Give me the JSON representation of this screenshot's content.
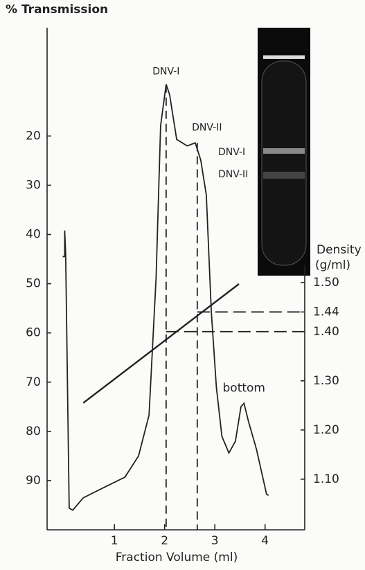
{
  "chart_data": {
    "type": "line",
    "y_label": "% Transmission",
    "x_label": "Fraction Volume (ml)",
    "y2_label": [
      "Density",
      "(g/ml)"
    ],
    "xlim": [
      -0.34,
      4.79
    ],
    "xticks": [
      1,
      2,
      3,
      4
    ],
    "ylim": [
      100,
      -2
    ],
    "yticks": [
      20,
      30,
      40,
      50,
      60,
      70,
      80,
      90
    ],
    "y2lim": [
      0.997,
      2.018
    ],
    "y2ticks": [
      {
        "value": 1.1,
        "label": "1.10"
      },
      {
        "value": 1.2,
        "label": "1.20"
      },
      {
        "value": 1.3,
        "label": "1.30"
      },
      {
        "value": 1.4,
        "label": "1.40"
      },
      1.44,
      {
        "value": 1.5,
        "label": "1.50"
      }
    ],
    "series": [
      {
        "name": "Transmission",
        "color": "#222222",
        "x": [
          -0.03,
          0.01,
          0.01,
          0.03,
          0.1,
          0.17,
          0.38,
          0.79,
          1.21,
          1.48,
          1.69,
          1.83,
          1.92,
          2.03,
          2.1,
          2.24,
          2.45,
          2.61,
          2.72,
          2.83,
          2.93,
          3.03,
          3.14,
          3.28,
          3.41,
          3.52,
          3.58,
          3.67,
          3.83,
          4.03,
          4.07
        ],
        "values": [
          44.5,
          44.5,
          39.2,
          44,
          95.6,
          96,
          93.5,
          91.4,
          89.3,
          85,
          76.7,
          48.7,
          17.9,
          9.5,
          11.6,
          20.7,
          22,
          21.4,
          24.9,
          32,
          55.7,
          71,
          81,
          84.4,
          82,
          75,
          74.3,
          78,
          83.7,
          92.8,
          93
        ]
      },
      {
        "name": "Density",
        "color": "#222222",
        "axis": "y2",
        "x": [
          0.38,
          3.48
        ],
        "values": [
          1.255,
          1.497
        ]
      }
    ],
    "markers": [
      {
        "label": "DNV-I",
        "x": 2.03,
        "y": 9.5,
        "y2": 1.4
      },
      {
        "label": "DNV-II",
        "x": 2.65,
        "y": 21.4,
        "y2": 1.44
      }
    ],
    "annotation": {
      "text": "bottom",
      "x": 3.58,
      "y": 74.3
    },
    "inset": {
      "labels": [
        "DNV-I",
        "DNV-II"
      ]
    }
  }
}
